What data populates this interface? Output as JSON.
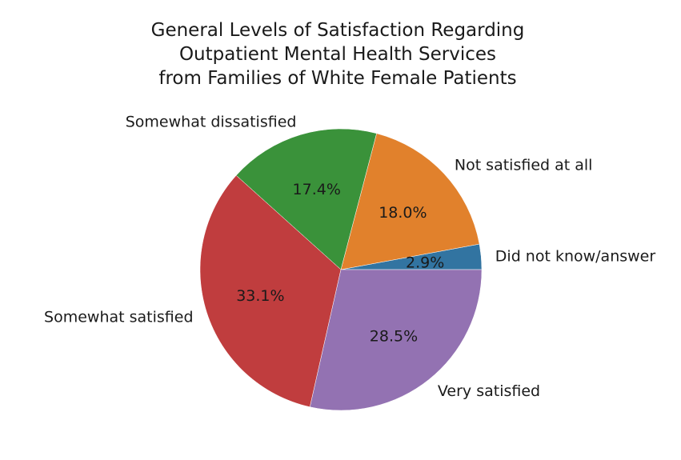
{
  "chart_data": {
    "type": "pie",
    "title_lines": [
      "General Levels of Satisfaction Regarding",
      "Outpatient Mental Health Services",
      "from Families of White Female Patients"
    ],
    "slices": [
      {
        "label": "Did not know/answer",
        "value": 2.9,
        "pct_label": "2.9%",
        "color": "#3274a1"
      },
      {
        "label": "Not satisfied at all",
        "value": 18.0,
        "pct_label": "18.0%",
        "color": "#e1812c"
      },
      {
        "label": "Somewhat dissatisfied",
        "value": 17.4,
        "pct_label": "17.4%",
        "color": "#3a923a"
      },
      {
        "label": "Somewhat satisfied",
        "value": 33.1,
        "pct_label": "33.1%",
        "color": "#c03d3e"
      },
      {
        "label": "Very satisfied",
        "value": 28.5,
        "pct_label": "28.5%",
        "color": "#9372b2"
      }
    ],
    "start_angle": 0,
    "direction": "counterclockwise"
  }
}
